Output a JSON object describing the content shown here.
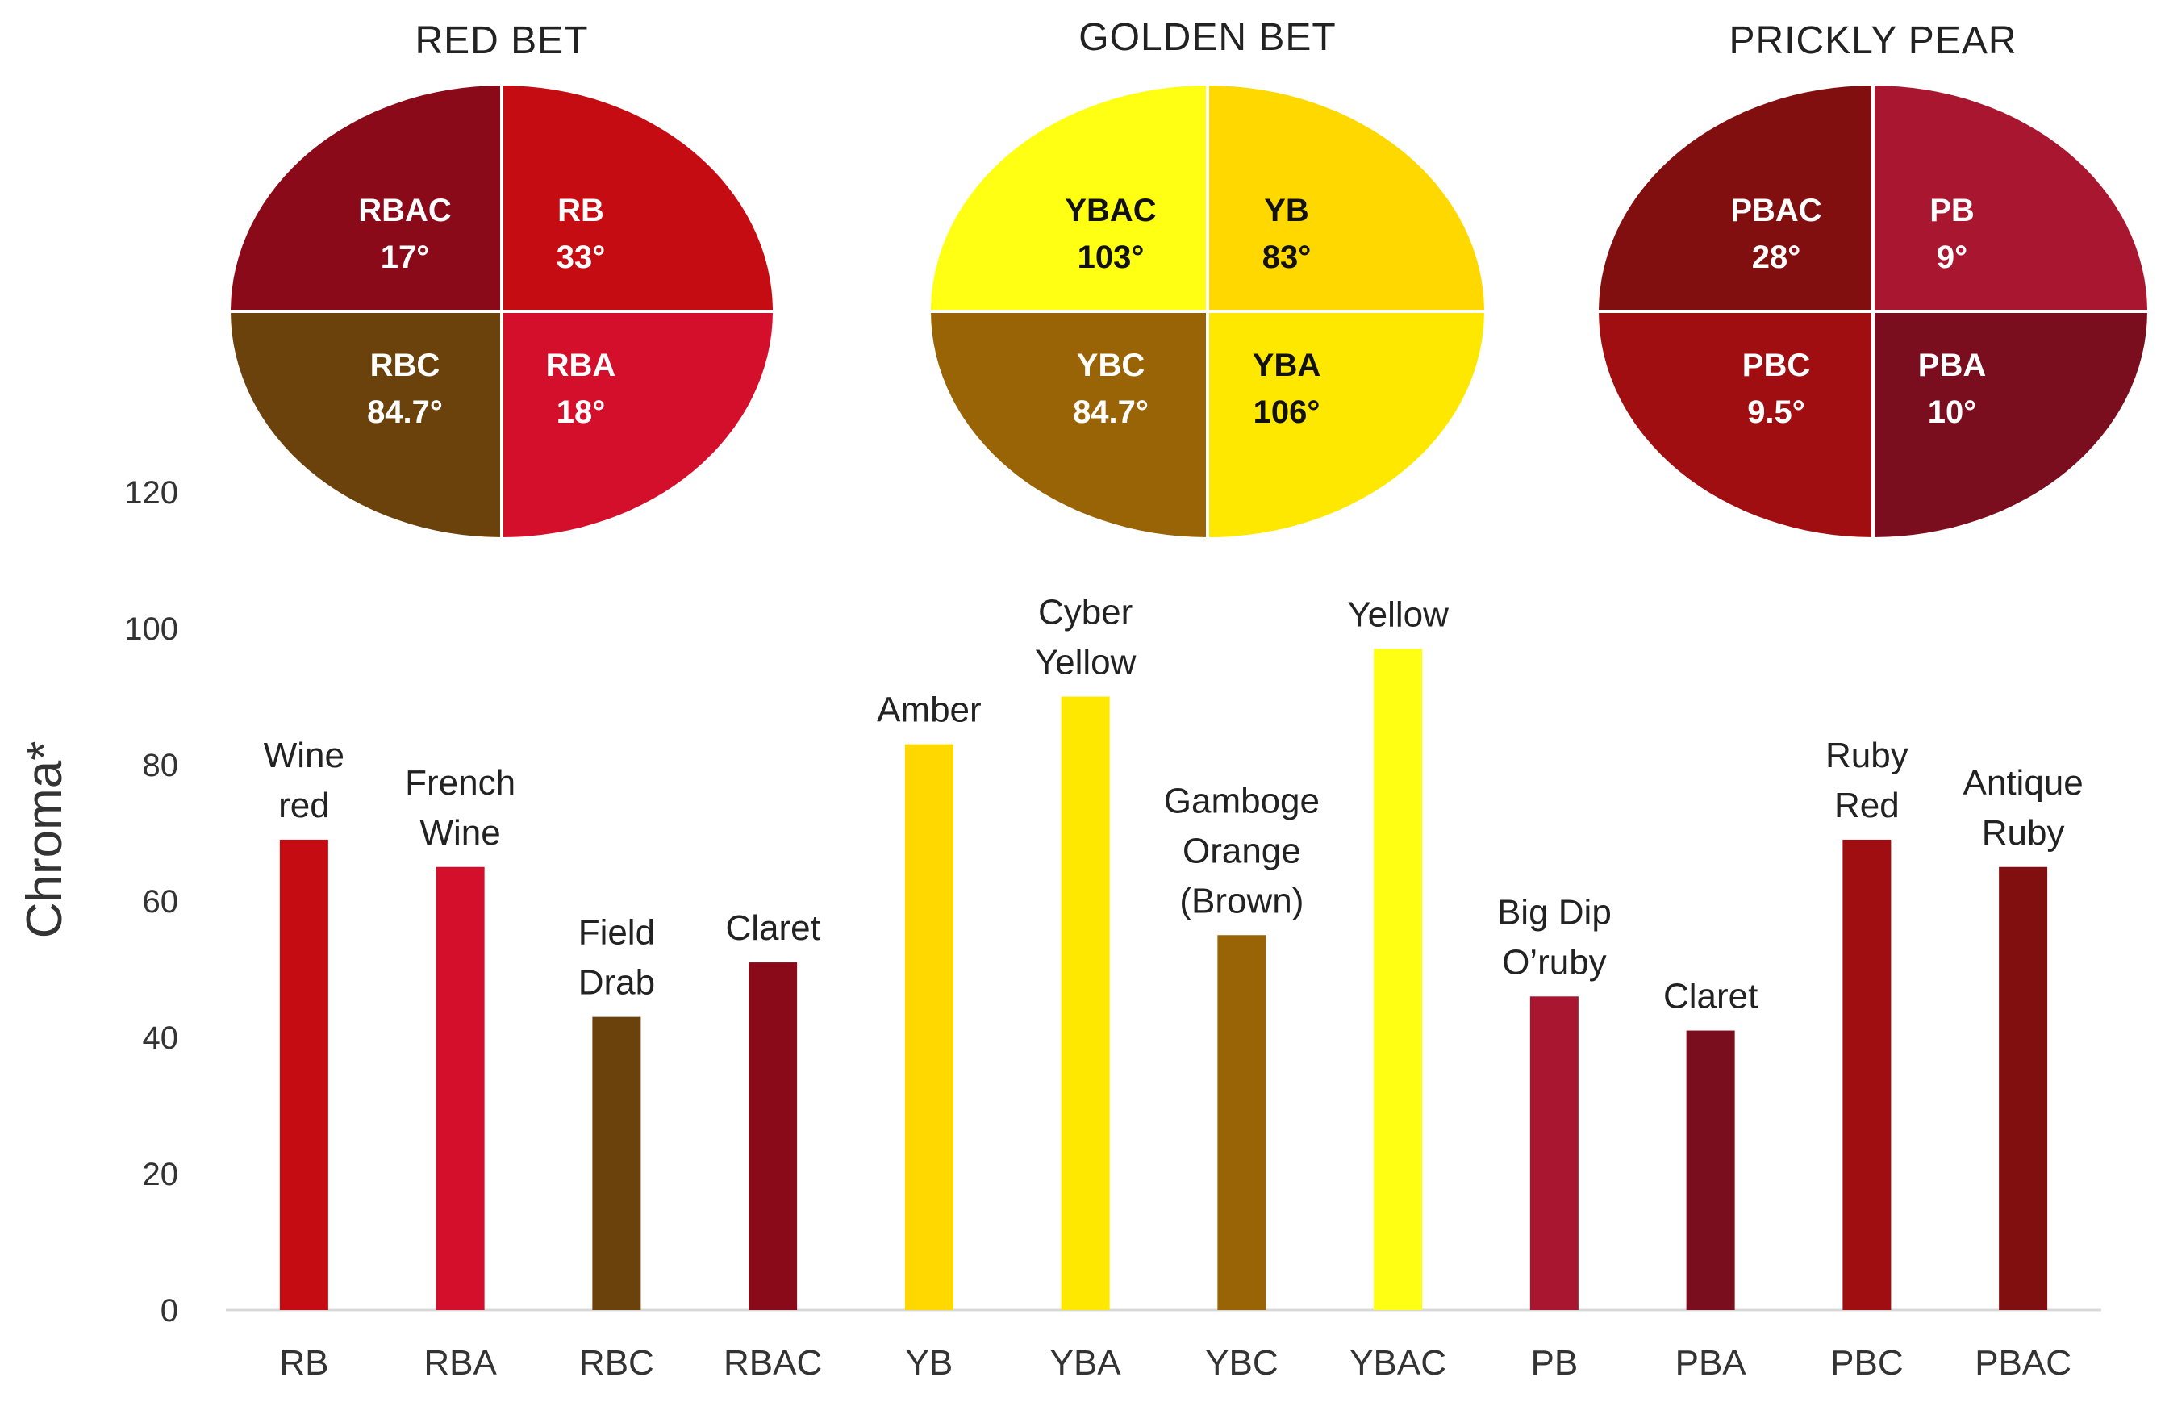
{
  "quadrant_charts": [
    {
      "title": "RED BET",
      "cells": [
        {
          "pos": "top-left",
          "name": "RBAC",
          "angle": "17°",
          "color": "#8B0A1A",
          "text_color": "#ffffff"
        },
        {
          "pos": "top-right",
          "name": "RB",
          "angle": "33°",
          "color": "#C40C12",
          "text_color": "#ffffff"
        },
        {
          "pos": "bottom-left",
          "name": "RBC",
          "angle": "84.7°",
          "color": "#6B420C",
          "text_color": "#ffffff"
        },
        {
          "pos": "bottom-right",
          "name": "RBA",
          "angle": "18°",
          "color": "#D30F2C",
          "text_color": "#ffffff"
        }
      ]
    },
    {
      "title": "GOLDEN BET",
      "cells": [
        {
          "pos": "top-left",
          "name": "YBAC",
          "angle": "103°",
          "color": "#FFFF14",
          "text_color": "#111111"
        },
        {
          "pos": "top-right",
          "name": "YB",
          "angle": "83°",
          "color": "#FFD800",
          "text_color": "#111111"
        },
        {
          "pos": "bottom-left",
          "name": "YBC",
          "angle": "84.7°",
          "color": "#996406",
          "text_color": "#ffffff"
        },
        {
          "pos": "bottom-right",
          "name": "YBA",
          "angle": "106°",
          "color": "#FFE800",
          "text_color": "#111111"
        }
      ]
    },
    {
      "title": "PRICKLY PEAR",
      "cells": [
        {
          "pos": "top-left",
          "name": "PBAC",
          "angle": "28°",
          "color": "#820F10",
          "text_color": "#ffffff"
        },
        {
          "pos": "top-right",
          "name": "PB",
          "angle": "9°",
          "color": "#A9162F",
          "text_color": "#ffffff"
        },
        {
          "pos": "bottom-left",
          "name": "PBC",
          "angle": "9.5°",
          "color": "#A00E12",
          "text_color": "#ffffff"
        },
        {
          "pos": "bottom-right",
          "name": "PBA",
          "angle": "10°",
          "color": "#7A0E1E",
          "text_color": "#ffffff"
        }
      ]
    }
  ],
  "chart_data": {
    "type": "bar",
    "categories": [
      "RB",
      "RBA",
      "RBC",
      "RBAC",
      "YB",
      "YBA",
      "YBC",
      "YBAC",
      "PB",
      "PBA",
      "PBC",
      "PBAC"
    ],
    "values": [
      69,
      65,
      43,
      51,
      83,
      90,
      55,
      97,
      46,
      41,
      69,
      65
    ],
    "bar_labels": [
      [
        "Wine",
        "red"
      ],
      [
        "French",
        "Wine"
      ],
      [
        "Field",
        "Drab"
      ],
      [
        "Claret"
      ],
      [
        "Amber"
      ],
      [
        "Cyber",
        "Yellow"
      ],
      [
        "Gamboge",
        "Orange",
        "(Brown)"
      ],
      [
        "Yellow"
      ],
      [
        "Big Dip",
        "O’ruby"
      ],
      [
        "Claret"
      ],
      [
        "Ruby",
        "Red"
      ],
      [
        "Antique",
        "Ruby"
      ]
    ],
    "colors": [
      "#C40C12",
      "#D30F2C",
      "#6B420C",
      "#8B0A1A",
      "#FFD800",
      "#FFE800",
      "#996406",
      "#FFFF14",
      "#A9162F",
      "#7A0E1E",
      "#A00E12",
      "#820F10"
    ],
    "ylabel": "Chroma*",
    "xlabel": "",
    "ylim": [
      0,
      120
    ],
    "yticks": [
      0,
      20,
      40,
      60,
      80,
      100,
      120
    ],
    "grid": false
  }
}
